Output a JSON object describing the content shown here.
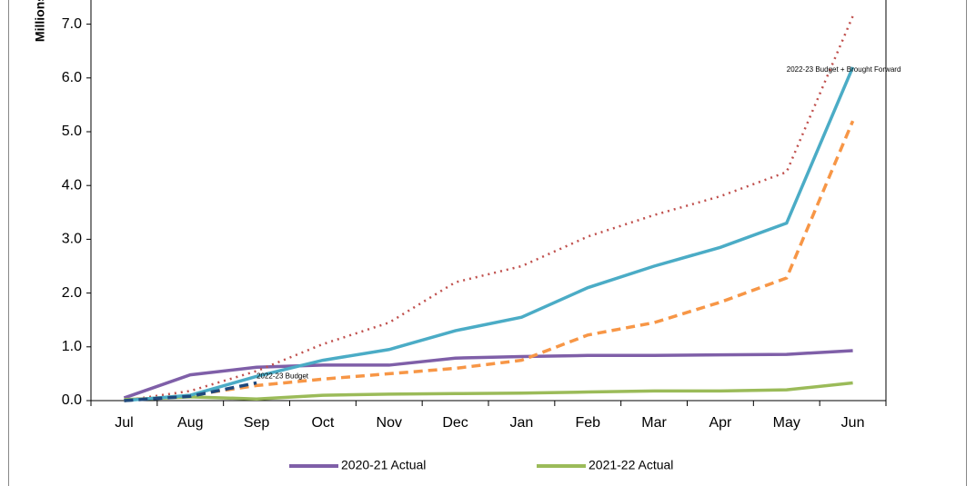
{
  "chart_data": {
    "type": "line",
    "y_label": "Millions",
    "categories": [
      "Jul",
      "Aug",
      "Sep",
      "Oct",
      "Nov",
      "Dec",
      "Jan",
      "Feb",
      "Mar",
      "Apr",
      "May",
      "Jun"
    ],
    "series": [
      {
        "name": "2020-21 Actual",
        "color": "#7f5fa8",
        "dash": "solid",
        "values": [
          0.05,
          0.48,
          0.62,
          0.66,
          0.66,
          0.79,
          0.82,
          0.84,
          0.84,
          0.85,
          0.86,
          0.93
        ]
      },
      {
        "name": "2021-22 Actual",
        "color": "#9bbb59",
        "dash": "solid",
        "values": [
          0.02,
          0.07,
          0.03,
          0.1,
          0.12,
          0.13,
          0.14,
          0.16,
          0.18,
          0.18,
          0.2,
          0.33
        ]
      },
      {
        "color": "#c0504d",
        "dash": "dotted",
        "values": [
          0.0,
          0.18,
          0.55,
          1.05,
          1.45,
          2.2,
          2.5,
          3.05,
          3.45,
          3.8,
          4.25,
          7.15
        ]
      },
      {
        "color": "#f79646",
        "dash": "dashed",
        "values": [
          0.0,
          0.1,
          0.28,
          0.4,
          0.5,
          0.6,
          0.75,
          1.22,
          1.45,
          1.83,
          2.28,
          5.2
        ]
      },
      {
        "color": "#4bacc6",
        "dash": "solid",
        "values": [
          0.0,
          0.1,
          0.45,
          0.75,
          0.95,
          1.3,
          1.55,
          2.1,
          2.5,
          2.85,
          3.3,
          6.2
        ]
      },
      {
        "color": "#1f497d",
        "dash": "dashed",
        "values": [
          0.0,
          0.08,
          0.33,
          null,
          null,
          null,
          null,
          null,
          null,
          null,
          null,
          null
        ]
      }
    ],
    "annotations": [
      {
        "text": "2022-23 Budget",
        "category": "Sep",
        "y": 0.45
      },
      {
        "text": "2022-23 Budget + Brought Forward",
        "category": "May",
        "y": 6.15
      }
    ],
    "ylim": [
      0,
      7.5
    ],
    "yticks": [
      {
        "value": 0,
        "label": "0.0"
      },
      {
        "value": 1,
        "label": "1.0"
      },
      {
        "value": 2,
        "label": "2.0"
      },
      {
        "value": 3,
        "label": "3.0"
      },
      {
        "value": 4,
        "label": "4.0"
      },
      {
        "value": 5,
        "label": "5.0"
      },
      {
        "value": 6,
        "label": "6.0"
      },
      {
        "value": 7,
        "label": "7.0"
      }
    ],
    "grid": false,
    "legend": "bottom"
  }
}
